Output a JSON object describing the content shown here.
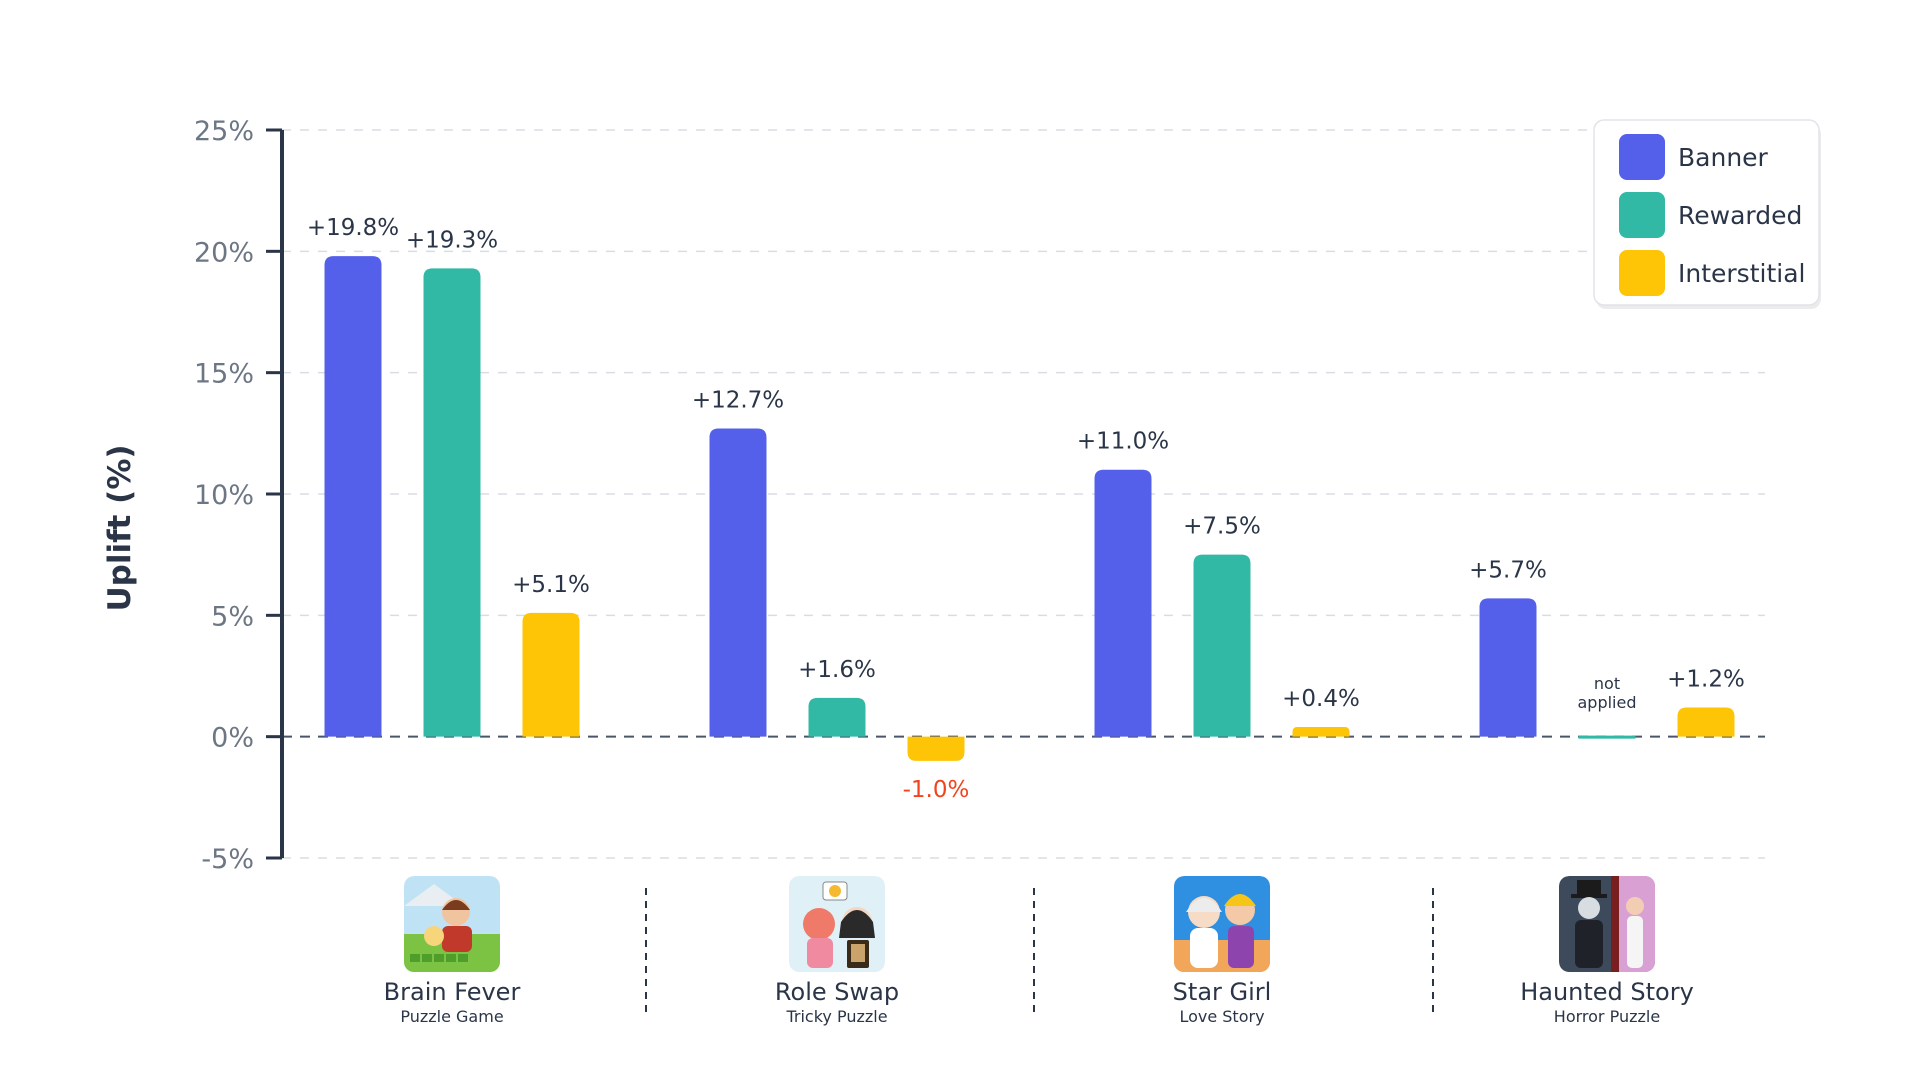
{
  "chart_data": {
    "type": "bar",
    "ylabel": "Uplift (%)",
    "ylim": [
      -5,
      25
    ],
    "yticks": [
      25,
      20,
      15,
      10,
      5,
      0,
      -5
    ],
    "ytick_labels": [
      "25%",
      "20%",
      "15%",
      "10%",
      "5%",
      "0%",
      "-5%"
    ],
    "grid": true,
    "legend_position": "top-right",
    "categories": [
      {
        "name": "Brain Fever",
        "subtitle": "Puzzle Game",
        "icon": "brain-fever-app-icon"
      },
      {
        "name": "Role Swap",
        "subtitle": "Tricky Puzzle",
        "icon": "role-swap-app-icon"
      },
      {
        "name": "Star Girl",
        "subtitle": "Love Story",
        "icon": "star-girl-app-icon"
      },
      {
        "name": "Haunted Story",
        "subtitle": "Horror Puzzle",
        "icon": "haunted-story-app-icon"
      }
    ],
    "series": [
      {
        "name": "Banner",
        "color": "#5460ea",
        "values": [
          19.8,
          12.7,
          11.0,
          5.7
        ],
        "labels": [
          "+19.8%",
          "+12.7%",
          "+11.0%",
          "+5.7%"
        ]
      },
      {
        "name": "Rewarded",
        "color": "#31b9a6",
        "values": [
          19.3,
          1.6,
          7.5,
          0
        ],
        "labels": [
          "+19.3%",
          "+1.6%",
          "+7.5%",
          ""
        ],
        "not_applied": [
          false,
          false,
          false,
          true
        ]
      },
      {
        "name": "Interstitial",
        "color": "#fdc506",
        "values": [
          5.1,
          -1.0,
          0.4,
          1.2
        ],
        "labels": [
          "+5.1%",
          "-1.0%",
          "+0.4%",
          "+1.2%"
        ]
      }
    ],
    "not_applied_text": [
      "not",
      "applied"
    ],
    "negative_label_color": "#f0441e"
  }
}
